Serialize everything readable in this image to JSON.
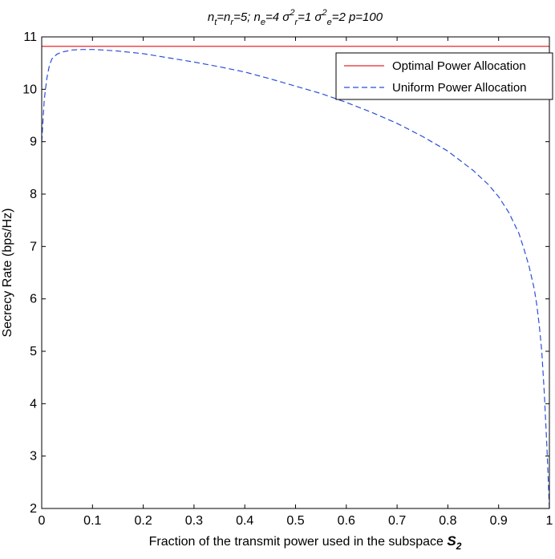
{
  "chart_data": {
    "type": "line",
    "title": {
      "parts": [
        {
          "text": "n"
        },
        {
          "text": "t",
          "sub": true
        },
        {
          "text": "=n"
        },
        {
          "text": "r",
          "sub": true
        },
        {
          "text": "=5;  n"
        },
        {
          "text": "e",
          "sub": true
        },
        {
          "text": "=4   σ"
        },
        {
          "text": "2",
          "sup": true
        },
        {
          "text": "r",
          "sub": true
        },
        {
          "text": "=1  σ"
        },
        {
          "text": "2",
          "sup": true
        },
        {
          "text": "e",
          "sub": true
        },
        {
          "text": "=2    p=100"
        }
      ]
    },
    "xlabel": {
      "text": "Fraction of the transmit power used in the subspace ",
      "symbol": "S",
      "symbol_sub": "2"
    },
    "ylabel": "Secrecy Rate (bps/Hz)",
    "xlim": [
      0,
      1
    ],
    "ylim": [
      2,
      11
    ],
    "xticks": [
      0,
      0.1,
      0.2,
      0.3,
      0.4,
      0.5,
      0.6,
      0.7,
      0.8,
      0.9,
      1
    ],
    "xtick_labels": [
      "0",
      "0.1",
      "0.2",
      "0.3",
      "0.4",
      "0.5",
      "0.6",
      "0.7",
      "0.8",
      "0.9",
      "1"
    ],
    "yticks": [
      2,
      3,
      4,
      5,
      6,
      7,
      8,
      9,
      10,
      11
    ],
    "ytick_labels": [
      "2",
      "3",
      "4",
      "5",
      "6",
      "7",
      "8",
      "9",
      "10",
      "11"
    ],
    "grid": false,
    "legend_position": "top-right",
    "series": [
      {
        "name": "Optimal Power Allocation",
        "color": "#e8262b",
        "style": "solid",
        "x": [
          0,
          1
        ],
        "y": [
          10.82,
          10.82
        ]
      },
      {
        "name": "Uniform Power Allocation",
        "color": "#2b4fd8",
        "style": "dashed",
        "x": [
          0,
          0.005,
          0.01,
          0.015,
          0.02,
          0.03,
          0.04,
          0.05,
          0.06,
          0.08,
          0.1,
          0.12,
          0.15,
          0.2,
          0.25,
          0.3,
          0.35,
          0.4,
          0.45,
          0.5,
          0.55,
          0.6,
          0.65,
          0.7,
          0.75,
          0.8,
          0.85,
          0.88,
          0.9,
          0.92,
          0.94,
          0.95,
          0.96,
          0.97,
          0.975,
          0.98,
          0.985,
          0.99,
          0.995,
          1
        ],
        "y": [
          9.0,
          9.8,
          10.2,
          10.45,
          10.58,
          10.67,
          10.71,
          10.73,
          10.75,
          10.76,
          10.76,
          10.75,
          10.73,
          10.68,
          10.6,
          10.52,
          10.43,
          10.33,
          10.2,
          10.06,
          9.92,
          9.75,
          9.56,
          9.35,
          9.1,
          8.82,
          8.45,
          8.18,
          7.95,
          7.65,
          7.25,
          6.95,
          6.62,
          6.2,
          5.9,
          5.5,
          5.0,
          4.2,
          3.2,
          2.0
        ]
      }
    ]
  }
}
